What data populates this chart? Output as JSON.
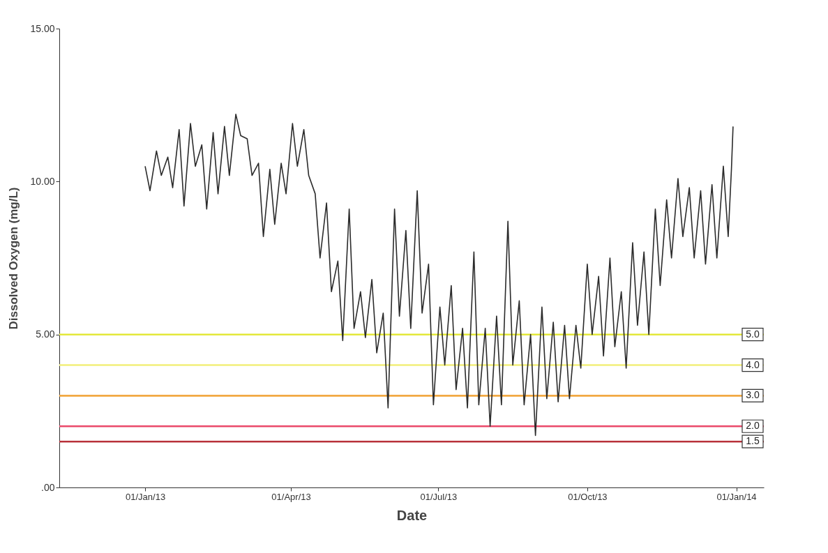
{
  "chart_data": {
    "type": "line",
    "xlabel": "Date",
    "ylabel": "Dissolved Oxygen (mg/L)",
    "xlim": [
      "2012-11-09",
      "2014-01-18"
    ],
    "ylim": [
      0,
      15
    ],
    "xticks": [
      {
        "value": "2013-01-01",
        "label": "01/Jan/13"
      },
      {
        "value": "2013-04-01",
        "label": "01/Apr/13"
      },
      {
        "value": "2013-07-01",
        "label": "01/Jul/13"
      },
      {
        "value": "2013-10-01",
        "label": "01/Oct/13"
      },
      {
        "value": "2014-01-01",
        "label": "01/Jan/14"
      }
    ],
    "yticks": [
      {
        "value": 0,
        "label": ".00"
      },
      {
        "value": 5,
        "label": "5.00"
      },
      {
        "value": 10,
        "label": "10.00"
      },
      {
        "value": 15,
        "label": "15.00"
      }
    ],
    "x": [
      "2013-01-01",
      "2013-01-04",
      "2013-01-08",
      "2013-01-11",
      "2013-01-15",
      "2013-01-18",
      "2013-01-22",
      "2013-01-25",
      "2013-01-29",
      "2013-02-01",
      "2013-02-05",
      "2013-02-08",
      "2013-02-12",
      "2013-02-15",
      "2013-02-19",
      "2013-02-22",
      "2013-02-26",
      "2013-03-01",
      "2013-03-05",
      "2013-03-08",
      "2013-03-12",
      "2013-03-15",
      "2013-03-19",
      "2013-03-22",
      "2013-03-26",
      "2013-03-29",
      "2013-04-02",
      "2013-04-05",
      "2013-04-09",
      "2013-04-12",
      "2013-04-16",
      "2013-04-19",
      "2013-04-23",
      "2013-04-26",
      "2013-04-30",
      "2013-05-03",
      "2013-05-07",
      "2013-05-10",
      "2013-05-14",
      "2013-05-17",
      "2013-05-21",
      "2013-05-24",
      "2013-05-28",
      "2013-05-31",
      "2013-06-04",
      "2013-06-07",
      "2013-06-11",
      "2013-06-14",
      "2013-06-18",
      "2013-06-21",
      "2013-06-25",
      "2013-06-28",
      "2013-07-02",
      "2013-07-05",
      "2013-07-09",
      "2013-07-12",
      "2013-07-16",
      "2013-07-19",
      "2013-07-23",
      "2013-07-26",
      "2013-07-30",
      "2013-08-02",
      "2013-08-06",
      "2013-08-09",
      "2013-08-13",
      "2013-08-16",
      "2013-08-20",
      "2013-08-23",
      "2013-08-27",
      "2013-08-30",
      "2013-09-03",
      "2013-09-06",
      "2013-09-10",
      "2013-09-13",
      "2013-09-17",
      "2013-09-20",
      "2013-09-24",
      "2013-09-27",
      "2013-10-01",
      "2013-10-04",
      "2013-10-08",
      "2013-10-11",
      "2013-10-15",
      "2013-10-18",
      "2013-10-22",
      "2013-10-25",
      "2013-10-29",
      "2013-11-01",
      "2013-11-05",
      "2013-11-08",
      "2013-11-12",
      "2013-11-15",
      "2013-11-19",
      "2013-11-22",
      "2013-11-26",
      "2013-11-29",
      "2013-12-03",
      "2013-12-06",
      "2013-12-10",
      "2013-12-13",
      "2013-12-17",
      "2013-12-20",
      "2013-12-24",
      "2013-12-27",
      "2013-12-29",
      "2013-12-30"
    ],
    "series": [
      {
        "color": "#2b2b2b",
        "values": [
          10.5,
          9.7,
          11.0,
          10.2,
          10.8,
          9.8,
          11.7,
          9.2,
          11.9,
          10.5,
          11.2,
          9.1,
          11.6,
          9.6,
          11.8,
          10.2,
          12.2,
          11.5,
          11.4,
          10.2,
          10.6,
          8.2,
          10.4,
          8.6,
          10.6,
          9.6,
          11.9,
          10.5,
          11.7,
          10.2,
          9.6,
          7.5,
          9.3,
          6.4,
          7.4,
          4.8,
          9.1,
          5.2,
          6.4,
          4.9,
          6.8,
          4.4,
          5.7,
          2.6,
          9.1,
          5.6,
          8.4,
          5.2,
          9.7,
          5.7,
          7.3,
          2.7,
          5.9,
          4.0,
          6.6,
          3.2,
          5.2,
          2.6,
          7.7,
          2.7,
          5.2,
          2.0,
          5.6,
          2.7,
          8.7,
          4.0,
          6.1,
          2.7,
          5.0,
          1.7,
          5.9,
          2.9,
          5.4,
          2.8,
          5.3,
          2.9,
          5.3,
          3.9,
          7.3,
          5.0,
          6.9,
          4.3,
          7.5,
          4.6,
          6.4,
          3.9,
          8.0,
          5.3,
          7.7,
          5.0,
          9.1,
          6.6,
          9.4,
          7.5,
          10.1,
          8.2,
          9.8,
          7.5,
          9.7,
          7.3,
          9.9,
          7.5,
          10.5,
          8.2,
          10.4,
          11.8
        ]
      }
    ],
    "ref_lines": [
      {
        "axis": "y",
        "value": 5,
        "label": "5.0",
        "color": "#e3e83a"
      },
      {
        "axis": "y",
        "value": 4,
        "label": "4.0",
        "color": "#f2ef7a"
      },
      {
        "axis": "y",
        "value": 3,
        "label": "3.0",
        "color": "#f0a030"
      },
      {
        "axis": "y",
        "value": 2,
        "label": "2.0",
        "color": "#ea4a6a"
      },
      {
        "axis": "y",
        "value": 1.5,
        "label": "1.5",
        "color": "#b8323a"
      }
    ]
  }
}
